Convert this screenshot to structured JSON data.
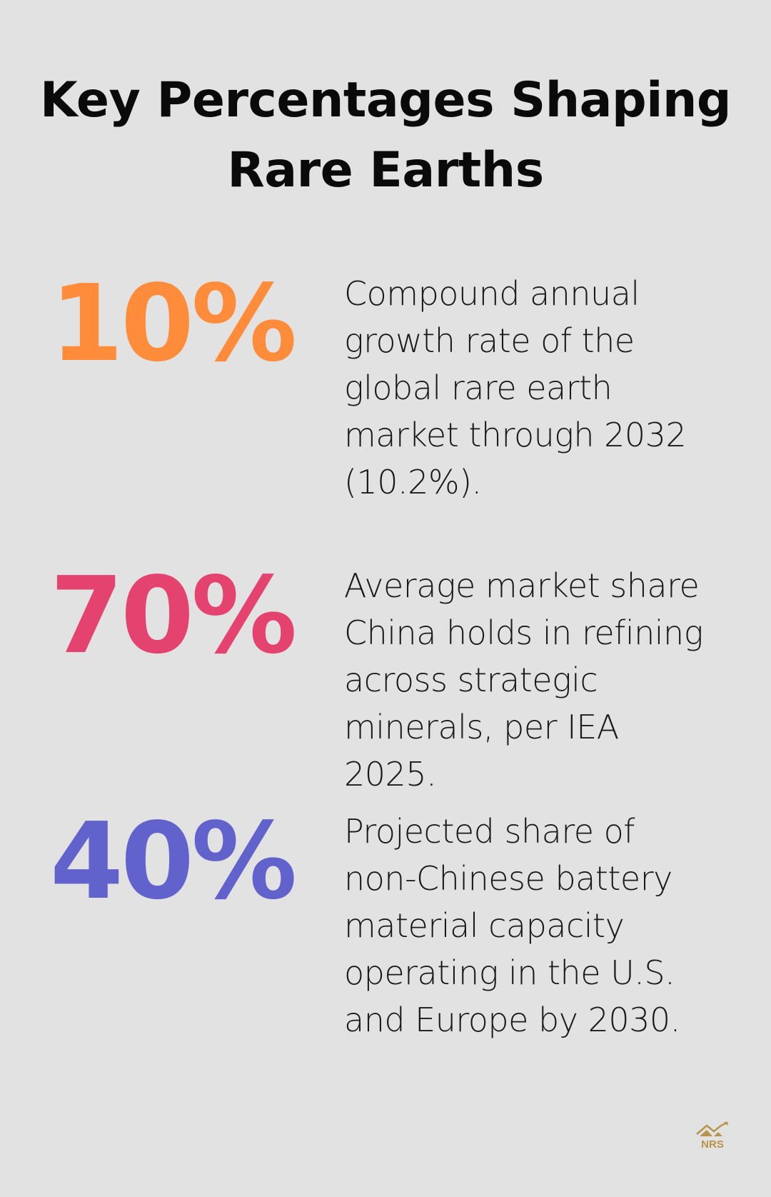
{
  "title": "Key Percentages Shaping Rare Earths",
  "stats": [
    {
      "value": "10%",
      "color": "#ff8c3a",
      "description": "Compound annual growth rate of the global rare earth market through 2032 (10.2%)."
    },
    {
      "value": "70%",
      "color": "#e4426f",
      "description": "Average market share China holds in refining across strategic minerals, per IEA 2025."
    },
    {
      "value": "40%",
      "color": "#6262cc",
      "description": "Projected share of non-Chinese battery material capacity operating in the U.S. and Europe by 2030."
    }
  ],
  "logo": {
    "text": "NRS",
    "color": "#b8934a"
  }
}
